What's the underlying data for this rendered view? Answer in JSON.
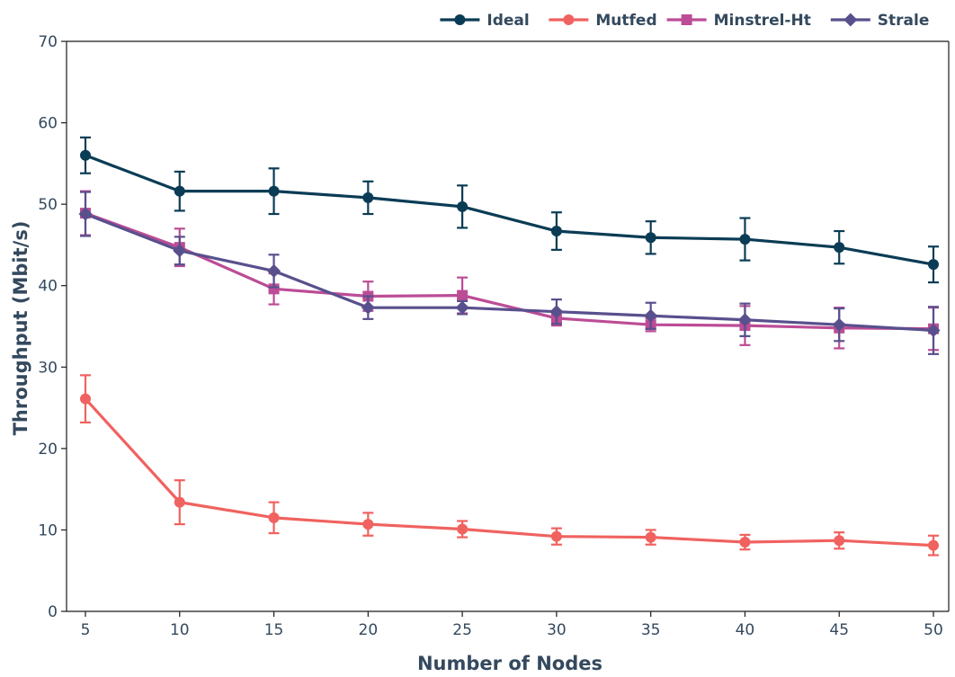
{
  "chart_data": {
    "type": "line",
    "title": "",
    "xlabel": "Number of Nodes",
    "ylabel": "Throughput (Mbit/s)",
    "x": [
      5,
      10,
      15,
      20,
      25,
      30,
      35,
      40,
      45,
      50
    ],
    "xlim": [
      5,
      50
    ],
    "ylim": [
      0,
      70
    ],
    "yticks": [
      0,
      10,
      20,
      30,
      40,
      50,
      60,
      70
    ],
    "xticks": [
      5,
      10,
      15,
      20,
      25,
      30,
      35,
      40,
      45,
      50
    ],
    "grid": false,
    "legend_position": "top-right",
    "series": [
      {
        "name": "Ideal",
        "color": "#0b3c55",
        "marker": "circle",
        "values": [
          56.0,
          51.6,
          51.6,
          50.8,
          49.7,
          46.7,
          45.9,
          45.7,
          44.7,
          42.6
        ],
        "errors": [
          2.2,
          2.4,
          2.8,
          2.0,
          2.6,
          2.3,
          2.0,
          2.6,
          2.0,
          2.2
        ]
      },
      {
        "name": "Mutfed",
        "color": "#f0625f",
        "marker": "circle",
        "values": [
          26.1,
          13.4,
          11.5,
          10.7,
          10.1,
          9.2,
          9.1,
          8.5,
          8.7,
          8.1
        ],
        "errors": [
          2.9,
          2.7,
          1.9,
          1.4,
          1.0,
          1.0,
          0.9,
          0.9,
          1.0,
          1.2
        ]
      },
      {
        "name": "Minstrel-Ht",
        "color": "#bc4c96",
        "marker": "square",
        "values": [
          48.9,
          44.7,
          39.6,
          38.7,
          38.8,
          36.0,
          35.2,
          35.1,
          34.8,
          34.7
        ],
        "errors": [
          2.7,
          2.3,
          1.9,
          1.8,
          2.2,
          0.9,
          0.8,
          2.4,
          2.5,
          2.6
        ]
      },
      {
        "name": "Strale",
        "color": "#58508d",
        "marker": "diamond",
        "values": [
          48.8,
          44.3,
          41.8,
          37.3,
          37.3,
          36.8,
          36.3,
          35.8,
          35.2,
          34.5
        ],
        "errors": [
          2.7,
          1.7,
          2.0,
          1.4,
          0.8,
          1.5,
          1.6,
          2.0,
          2.0,
          2.9
        ]
      }
    ]
  }
}
